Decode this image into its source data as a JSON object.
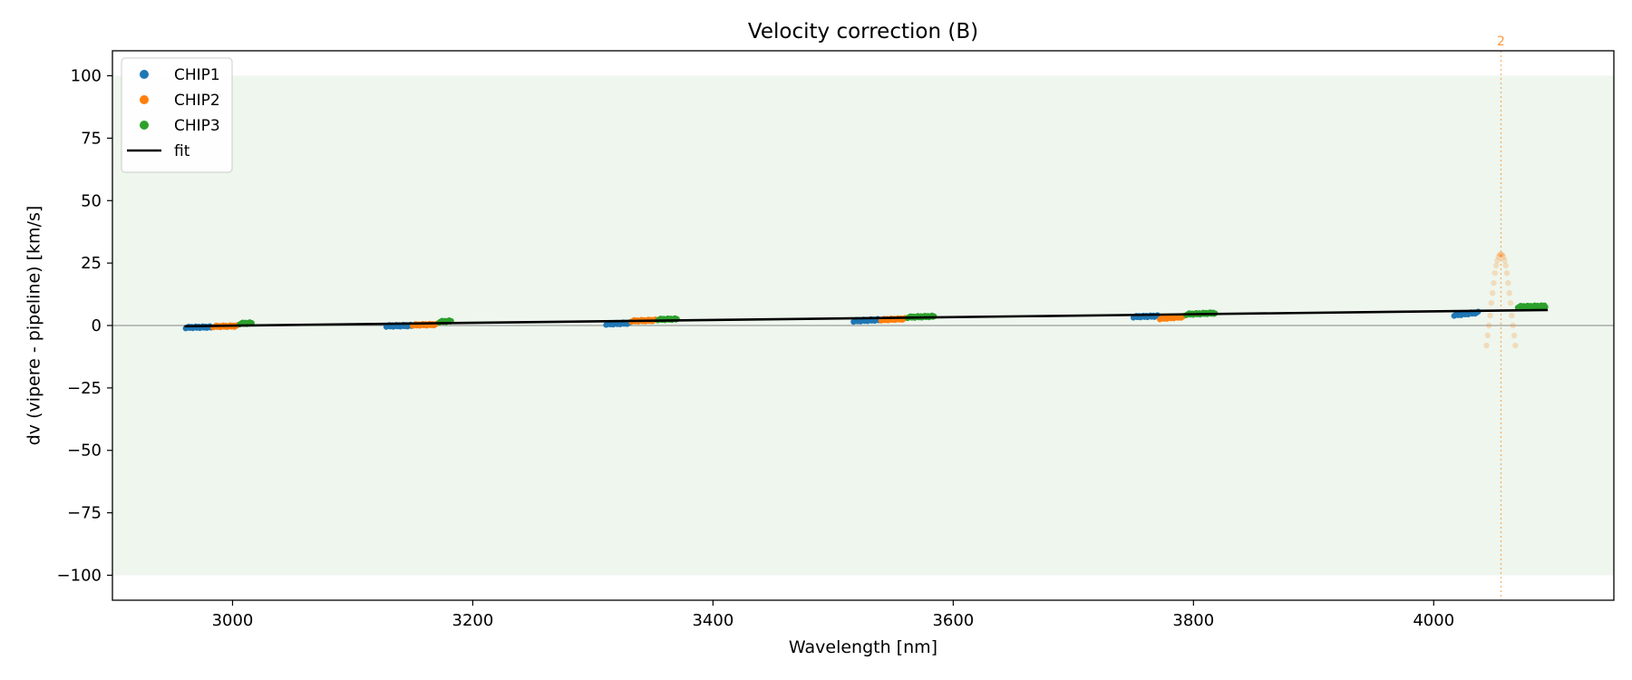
{
  "chart_data": {
    "type": "scatter",
    "title": "Velocity correction (B)",
    "xlabel": "Wavelength [nm]",
    "ylabel": "dv (vipere - pipeline) [km/s]",
    "xlim": [
      2900,
      4150
    ],
    "ylim": [
      -110,
      110
    ],
    "xticks": [
      3000,
      3200,
      3400,
      3600,
      3800,
      4000
    ],
    "xtick_labels": [
      "3000",
      "3200",
      "3400",
      "3600",
      "3800",
      "4000"
    ],
    "yticks": [
      -100,
      -75,
      -50,
      -25,
      0,
      25,
      50,
      75,
      100
    ],
    "ytick_labels": [
      "−100",
      "−75",
      "−50",
      "−25",
      "0",
      "25",
      "50",
      "75",
      "100"
    ],
    "band": [
      -100,
      100
    ],
    "band_color": "#eef6ee",
    "zero_line": 0,
    "colors": {
      "CHIP1": "#1f77b4",
      "CHIP2": "#ff7f0e",
      "CHIP3": "#2ca02c",
      "fit": "#000000"
    },
    "legend": [
      "CHIP1",
      "CHIP2",
      "CHIP3",
      "fit"
    ],
    "legend_position": "top-left",
    "series": [
      {
        "name": "CHIP1",
        "segments": [
          {
            "x": [
              2961,
              2982
            ],
            "y": [
              -0.8,
              -0.6
            ]
          },
          {
            "x": [
              3128,
              3149
            ],
            "y": [
              -0.2,
              0.0
            ]
          },
          {
            "x": [
              3311,
              3331
            ],
            "y": [
              0.6,
              1.0
            ]
          },
          {
            "x": [
              3517,
              3538
            ],
            "y": [
              1.8,
              2.3
            ]
          },
          {
            "x": [
              3750,
              3770
            ],
            "y": [
              3.5,
              3.8
            ]
          },
          {
            "x": [
              4017,
              4037
            ],
            "y": [
              4.2,
              5.2
            ]
          }
        ]
      },
      {
        "name": "CHIP2",
        "segments": [
          {
            "x": [
              2984,
              3004
            ],
            "y": [
              -0.4,
              -0.2
            ]
          },
          {
            "x": [
              3150,
              3170
            ],
            "y": [
              0.2,
              0.4
            ]
          },
          {
            "x": [
              3332,
              3352
            ],
            "y": [
              1.8,
              2.1
            ]
          },
          {
            "x": [
              3540,
              3560
            ],
            "y": [
              2.3,
              2.7
            ]
          },
          {
            "x": [
              3772,
              3792
            ],
            "y": [
              2.8,
              3.5
            ]
          }
        ]
      },
      {
        "name": "CHIP3",
        "segments": [
          {
            "x": [
              3006,
              3016
            ],
            "y": [
              0.8,
              1.0
            ]
          },
          {
            "x": [
              3172,
              3182
            ],
            "y": [
              1.5,
              1.8
            ]
          },
          {
            "x": [
              3354,
              3370
            ],
            "y": [
              2.4,
              2.6
            ]
          },
          {
            "x": [
              3562,
              3584
            ],
            "y": [
              3.3,
              3.7
            ]
          },
          {
            "x": [
              3794,
              3818
            ],
            "y": [
              4.5,
              5.0
            ]
          },
          {
            "x": [
              4070,
              4093
            ],
            "y": [
              7.5,
              7.8
            ]
          }
        ]
      }
    ],
    "outlier_chip": {
      "name": "CHIP2",
      "x_center": 4056,
      "points": [
        [
          4044,
          -8
        ],
        [
          4045,
          -4
        ],
        [
          4046,
          0
        ],
        [
          4047,
          4
        ],
        [
          4048,
          9
        ],
        [
          4049,
          13
        ],
        [
          4050,
          17
        ],
        [
          4051,
          21
        ],
        [
          4052,
          24
        ],
        [
          4053,
          26
        ],
        [
          4054,
          27.5
        ],
        [
          4055,
          28.3
        ],
        [
          4056,
          28.5
        ],
        [
          4057,
          28.3
        ],
        [
          4058,
          27.5
        ],
        [
          4059,
          26
        ],
        [
          4060,
          24
        ],
        [
          4061,
          21
        ],
        [
          4062,
          17
        ],
        [
          4063,
          13
        ],
        [
          4064,
          9
        ],
        [
          4065,
          4
        ],
        [
          4066,
          0
        ],
        [
          4067,
          -4
        ],
        [
          4068,
          -8
        ]
      ]
    },
    "fit": {
      "x": [
        2960,
        4095
      ],
      "y": [
        -0.3,
        6.2
      ]
    },
    "vline": {
      "x": 4056,
      "label": "2"
    }
  }
}
